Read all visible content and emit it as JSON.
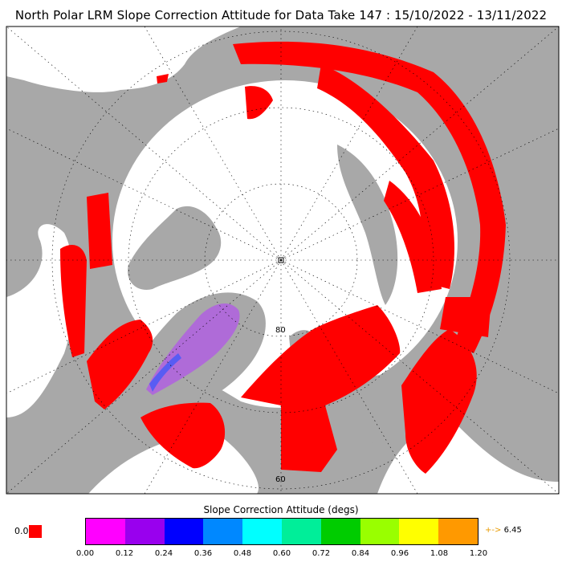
{
  "title": "North Polar LRM Slope Correction Attitude for Data Take 147 : 15/10/2022 - 13/11/2022",
  "map": {
    "projection": "north polar stereographic",
    "latitude_labels": [
      "80",
      "60"
    ],
    "swath_color": "#ff0000",
    "land_color": "#a8a8a8",
    "ocean_color": "#ffffff"
  },
  "colorbar": {
    "title": "Slope Correction Attitude (degs)",
    "zero_label": "0.0",
    "zero_color": "#ff0000",
    "ticks": [
      "0.00",
      "0.12",
      "0.24",
      "0.36",
      "0.48",
      "0.60",
      "0.72",
      "0.84",
      "0.96",
      "1.08",
      "1.20"
    ],
    "colors": [
      "#ff00ff",
      "#9900ee",
      "#0000ff",
      "#0088ff",
      "#00ffff",
      "#00ee99",
      "#00cc00",
      "#99ff00",
      "#ffff00",
      "#ff9900"
    ],
    "overflow_arrow": "+->",
    "overflow_value": "6.45"
  }
}
